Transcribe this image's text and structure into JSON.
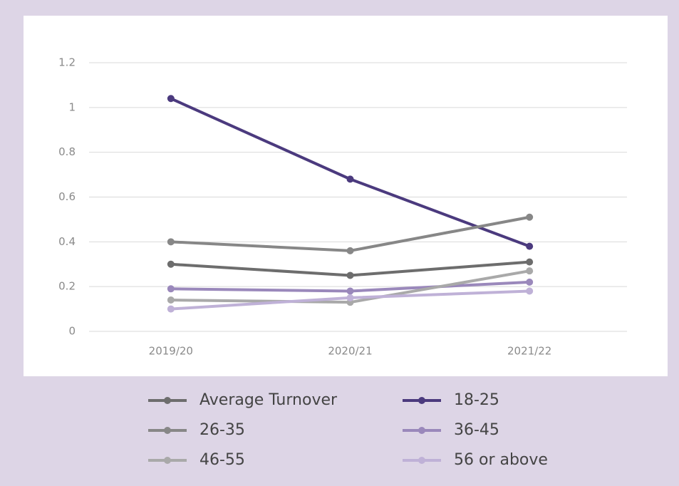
{
  "chart_data": {
    "type": "line",
    "categories": [
      "2019/20",
      "2020/21",
      "2021/22"
    ],
    "series": [
      {
        "name": "Average Turnover",
        "color": "#6d6d6d",
        "values": [
          0.3,
          0.25,
          0.31
        ]
      },
      {
        "name": "18-25",
        "color": "#4b3a7e",
        "values": [
          1.04,
          0.68,
          0.38
        ]
      },
      {
        "name": "26-35",
        "color": "#878787",
        "values": [
          0.4,
          0.36,
          0.51
        ]
      },
      {
        "name": "36-45",
        "color": "#9a88bb",
        "values": [
          0.19,
          0.18,
          0.22
        ]
      },
      {
        "name": "46-55",
        "color": "#a9a9a9",
        "values": [
          0.14,
          0.13,
          0.27
        ]
      },
      {
        "name": "56 or above",
        "color": "#bfb1d7",
        "values": [
          0.1,
          0.15,
          0.18
        ]
      }
    ],
    "ylim": [
      0,
      1.2
    ],
    "yticks": [
      0,
      0.2,
      0.4,
      0.6,
      0.8,
      1,
      1.2
    ],
    "grid": true,
    "legend": "bottom"
  }
}
